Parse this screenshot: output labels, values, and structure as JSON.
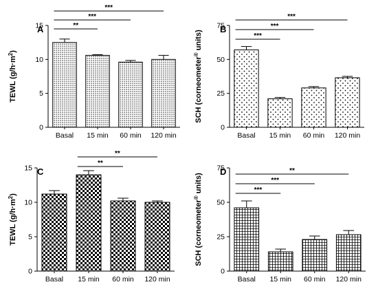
{
  "chart_data": [
    {
      "panel": "A",
      "type": "bar",
      "ylabel": "TEWL (g/h·m²)",
      "ylabel_main": "TEWL (g/h·m",
      "ylabel_sup": "2",
      "ylabel_close": ")",
      "ylim": [
        0,
        15
      ],
      "yticks": [
        0,
        5,
        10,
        15
      ],
      "categories": [
        "Basal",
        "15 min",
        "60 min",
        "120 min"
      ],
      "values": [
        12.5,
        10.6,
        9.6,
        10.0
      ],
      "errors": [
        0.5,
        0.1,
        0.25,
        0.6
      ],
      "fill": "dense-dots",
      "significance": [
        {
          "from": 0,
          "to": 1,
          "label": "**"
        },
        {
          "from": 0,
          "to": 2,
          "label": "***"
        },
        {
          "from": 0,
          "to": 3,
          "label": "***"
        }
      ]
    },
    {
      "panel": "B",
      "type": "bar",
      "ylabel": "SCH (corneometer® units)",
      "ylabel_main": "SCH (corneometer",
      "ylabel_sup": "®",
      "ylabel_close": " units)",
      "ylim": [
        0,
        75
      ],
      "yticks": [
        0,
        25,
        50,
        75
      ],
      "categories": [
        "Basal",
        "15 min",
        "60 min",
        "120 min"
      ],
      "values": [
        57,
        21,
        29,
        36.5
      ],
      "errors": [
        2.5,
        1,
        1,
        1
      ],
      "fill": "sparse-dots",
      "significance": [
        {
          "from": 0,
          "to": 1,
          "label": "***"
        },
        {
          "from": 0,
          "to": 2,
          "label": "***"
        },
        {
          "from": 0,
          "to": 3,
          "label": "***"
        }
      ]
    },
    {
      "panel": "C",
      "type": "bar",
      "ylabel": "TEWL (g/h·m²)",
      "ylabel_main": "TEWL (g/h·m",
      "ylabel_sup": "2",
      "ylabel_close": ")",
      "ylim": [
        0,
        15
      ],
      "yticks": [
        0,
        5,
        10,
        15
      ],
      "categories": [
        "Basal",
        "15 min",
        "60 min",
        "120 min"
      ],
      "values": [
        11.2,
        14.0,
        10.2,
        10.0
      ],
      "errors": [
        0.5,
        0.6,
        0.4,
        0.2
      ],
      "fill": "checker",
      "significance": [
        {
          "from": 1,
          "to": 2,
          "label": "**"
        },
        {
          "from": 1,
          "to": 3,
          "label": "**"
        }
      ]
    },
    {
      "panel": "D",
      "type": "bar",
      "ylabel": "SCH (corneometer® units)",
      "ylabel_main": "SCH (corneometer",
      "ylabel_sup": "®",
      "ylabel_close": " units)",
      "ylim": [
        0,
        75
      ],
      "yticks": [
        0,
        25,
        50,
        75
      ],
      "categories": [
        "Basal",
        "15 min",
        "60 min",
        "120 min"
      ],
      "values": [
        46,
        14,
        23,
        26.5
      ],
      "errors": [
        5,
        2,
        2.5,
        3
      ],
      "fill": "grid",
      "significance": [
        {
          "from": 0,
          "to": 1,
          "label": "***"
        },
        {
          "from": 0,
          "to": 2,
          "label": "***"
        },
        {
          "from": 0,
          "to": 3,
          "label": "**"
        }
      ]
    }
  ]
}
